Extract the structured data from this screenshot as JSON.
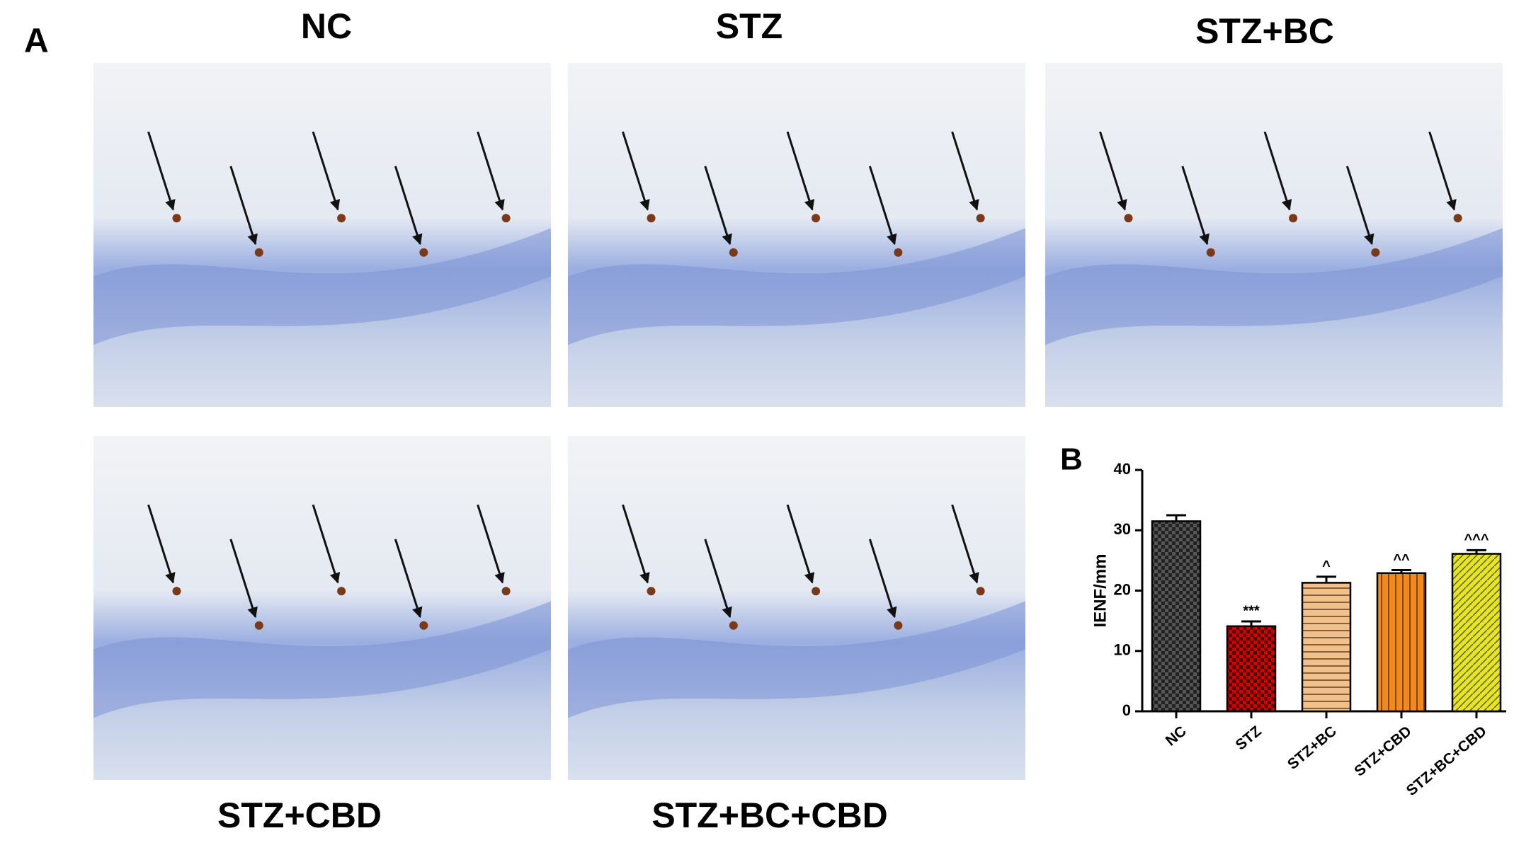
{
  "figure": {
    "panel_a_label": "A",
    "panel_b_label": "B",
    "panels": [
      {
        "title": "NC"
      },
      {
        "title": "STZ"
      },
      {
        "title": "STZ+BC"
      },
      {
        "title": "STZ+CBD"
      },
      {
        "title": "STZ+BC+CBD"
      }
    ]
  },
  "chart_data": {
    "type": "bar",
    "y_label": "IENF/mm",
    "categories": [
      "NC",
      "STZ",
      "STZ+BC",
      "STZ+CBD",
      "STZ+BC+CBD"
    ],
    "values": [
      31.5,
      14.1,
      21.3,
      22.9,
      26.1
    ],
    "errors": [
      1.0,
      0.8,
      1.0,
      0.5,
      0.6
    ],
    "annotations": [
      null,
      "***",
      "^",
      "^^",
      "^^^"
    ],
    "colors": [
      "#555555",
      "#d40000",
      "#f2c08a",
      "#f08a1e",
      "#e6e61a"
    ],
    "patterns": [
      "checker",
      "checker",
      "hstripe",
      "vstripe",
      "diagonal"
    ],
    "ylim": [
      0,
      40
    ],
    "yticks": [
      0,
      10,
      20,
      30,
      40
    ]
  }
}
